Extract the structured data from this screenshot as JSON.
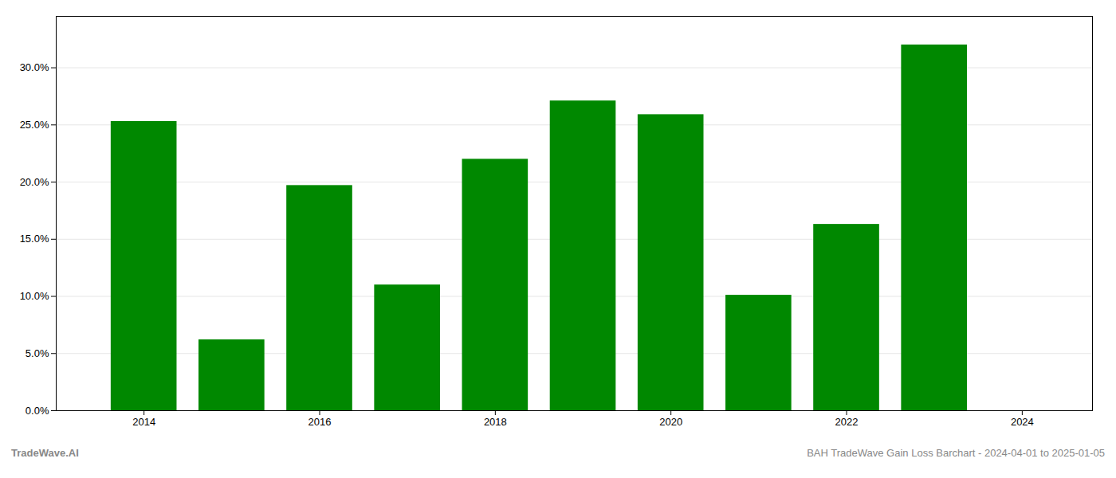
{
  "chart_data": {
    "type": "bar",
    "x": [
      2014,
      2015,
      2016,
      2017,
      2018,
      2019,
      2020,
      2021,
      2022,
      2023
    ],
    "values": [
      0.253,
      0.062,
      0.197,
      0.11,
      0.22,
      0.271,
      0.259,
      0.101,
      0.163,
      0.32
    ],
    "color": "#008800",
    "xlim": [
      2013.0,
      2024.8
    ],
    "xticks": [
      2014,
      2016,
      2018,
      2020,
      2022,
      2024
    ],
    "ylim": [
      0,
      0.345
    ],
    "yticks": [
      {
        "value": 0.0,
        "label": "0.0%"
      },
      {
        "value": 0.05,
        "label": "5.0%"
      },
      {
        "value": 0.1,
        "label": "10.0%"
      },
      {
        "value": 0.15,
        "label": "15.0%"
      },
      {
        "value": 0.2,
        "label": "20.0%"
      },
      {
        "value": 0.25,
        "label": "25.0%"
      },
      {
        "value": 0.3,
        "label": "30.0%"
      }
    ],
    "grid": true,
    "annotations": [
      "TradeWave.AI",
      "BAH TradeWave Gain Loss Barchart - 2024-04-01 to 2025-01-05"
    ]
  }
}
